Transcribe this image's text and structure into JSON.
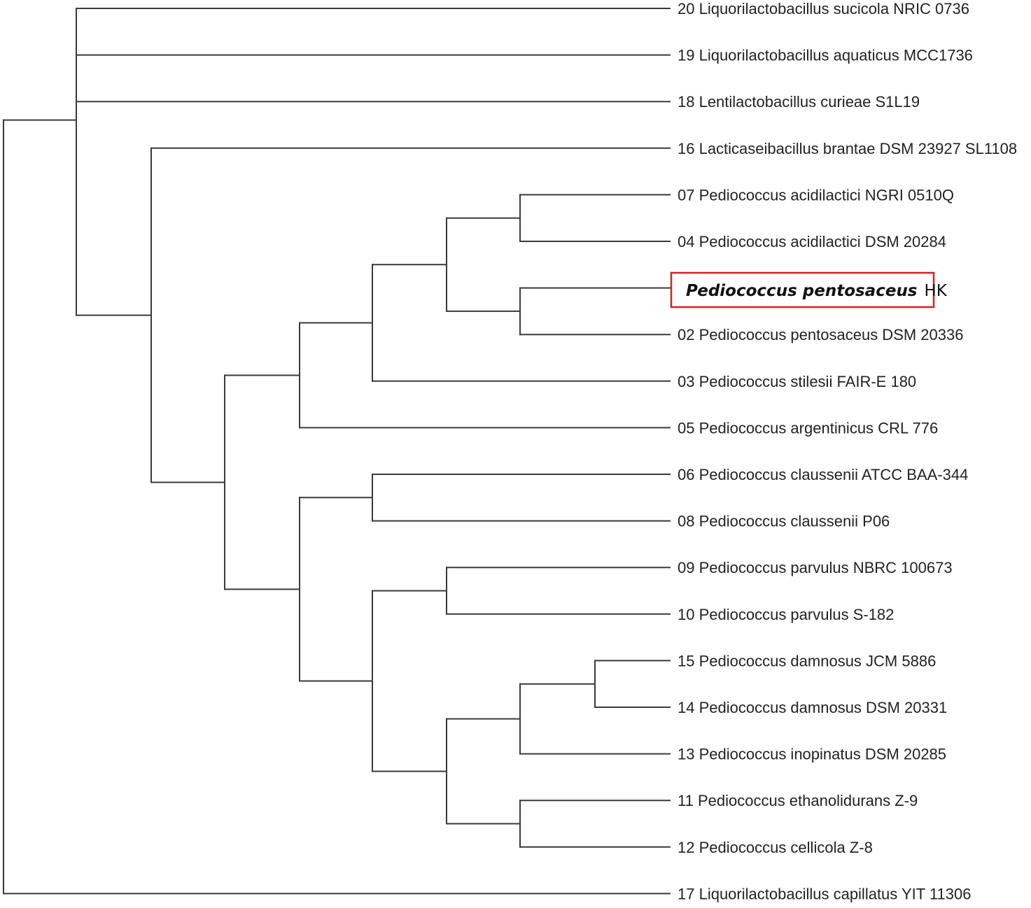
{
  "tree": {
    "leaves": [
      {
        "label": "20 Liquorilactobacillus sucicola NRIC 0736"
      },
      {
        "label": "19 Liquorilactobacillus aquaticus MCC1736"
      },
      {
        "label": "18 Lentilactobacillus curieae S1L19"
      },
      {
        "label": "16 Lacticaseibacillus brantae DSM 23927 SL1108"
      },
      {
        "label": "07 Pediococcus acidilactici NGRI 0510Q"
      },
      {
        "label": "04 Pediococcus acidilactici DSM 20284"
      },
      {
        "label": "",
        "highlight": true
      },
      {
        "label": "02 Pediococcus pentosaceus DSM 20336"
      },
      {
        "label": "03 Pediococcus stilesii FAIR-E 180"
      },
      {
        "label": "05 Pediococcus argentinicus CRL 776"
      },
      {
        "label": "06 Pediococcus claussenii ATCC BAA-344"
      },
      {
        "label": "08 Pediococcus claussenii P06"
      },
      {
        "label": "09 Pediococcus parvulus NBRC 100673"
      },
      {
        "label": "10 Pediococcus parvulus S-182"
      },
      {
        "label": "15 Pediococcus damnosus JCM 5886"
      },
      {
        "label": "14 Pediococcus damnosus DSM 20331"
      },
      {
        "label": "13 Pediococcus inopinatus DSM 20285"
      },
      {
        "label": "11 Pediococcus ethanolidurans Z-9"
      },
      {
        "label": "12 Pediococcus cellicola Z-8"
      },
      {
        "label": "17 Liquorilactobacillus capillatus YIT 11306"
      }
    ],
    "highlight": {
      "species": "Pediococcus pentosaceus",
      "strain": "HK",
      "box_color": "#d62020"
    }
  }
}
